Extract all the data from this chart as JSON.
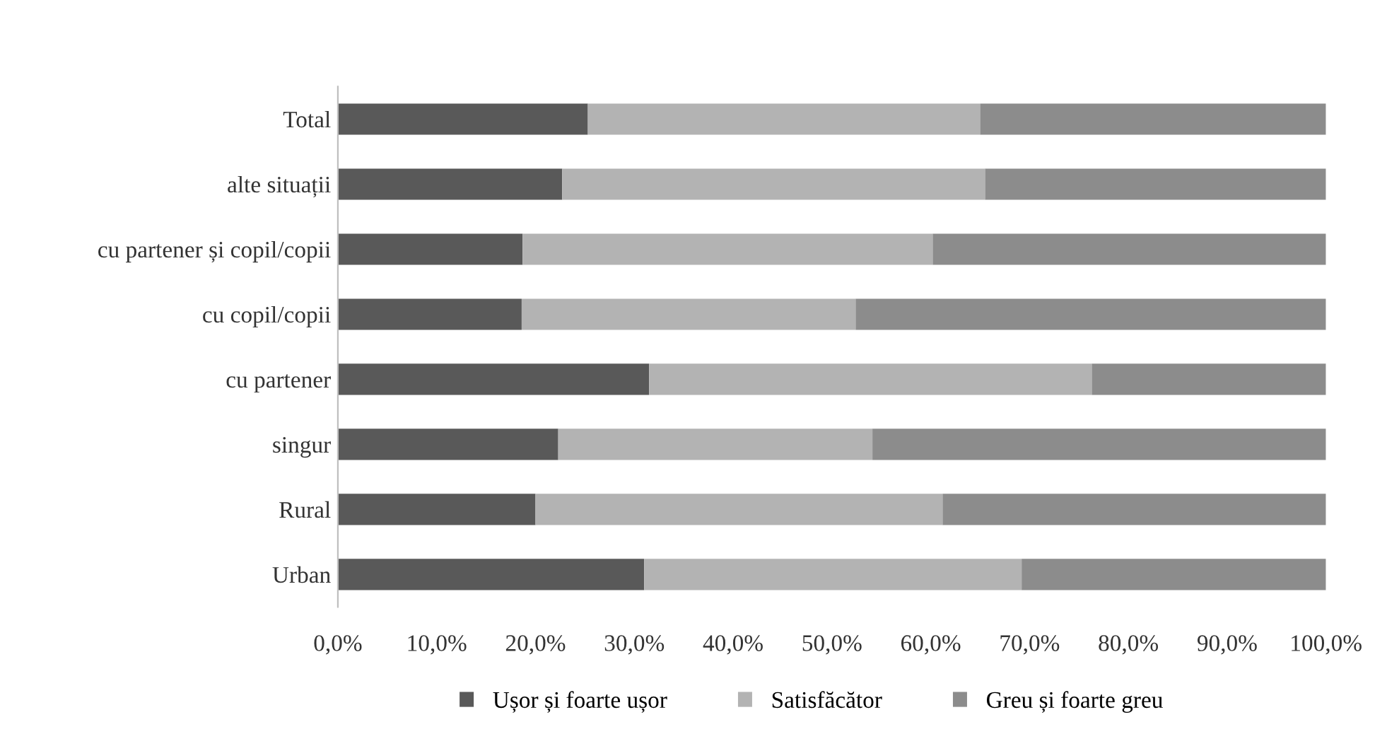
{
  "chart_data": {
    "type": "bar",
    "orientation": "horizontal",
    "stacked": true,
    "categories": [
      "Total",
      "alte situații",
      "cu partener și copil/copii",
      "cu copil/copii",
      "cu partener",
      "singur",
      "Rural",
      "Urban"
    ],
    "series": [
      {
        "name": "Ușor și foarte ușor",
        "color": "#595959",
        "values": [
          25.3,
          22.7,
          18.7,
          18.6,
          31.5,
          22.3,
          20.0,
          31.0
        ]
      },
      {
        "name": "Satisfăcător",
        "color": "#b3b3b3",
        "values": [
          39.7,
          42.8,
          41.5,
          33.8,
          44.8,
          31.8,
          41.2,
          38.2
        ]
      },
      {
        "name": "Greu și foarte greu",
        "color": "#8c8c8c",
        "values": [
          35.0,
          34.5,
          39.8,
          47.6,
          23.7,
          45.9,
          38.8,
          30.8
        ]
      }
    ],
    "xlim": [
      0,
      100
    ],
    "xticks": [
      {
        "value": 0,
        "label": "0,0%"
      },
      {
        "value": 10,
        "label": "10,0%"
      },
      {
        "value": 20,
        "label": "20,0%"
      },
      {
        "value": 30,
        "label": "30,0%"
      },
      {
        "value": 40,
        "label": "40,0%"
      },
      {
        "value": 50,
        "label": "50,0%"
      },
      {
        "value": 60,
        "label": "60,0%"
      },
      {
        "value": 70,
        "label": "70,0%"
      },
      {
        "value": 80,
        "label": "80,0%"
      },
      {
        "value": 90,
        "label": "90,0%"
      },
      {
        "value": 100,
        "label": "100,0%"
      }
    ],
    "grid": false,
    "legend": "bottom"
  }
}
